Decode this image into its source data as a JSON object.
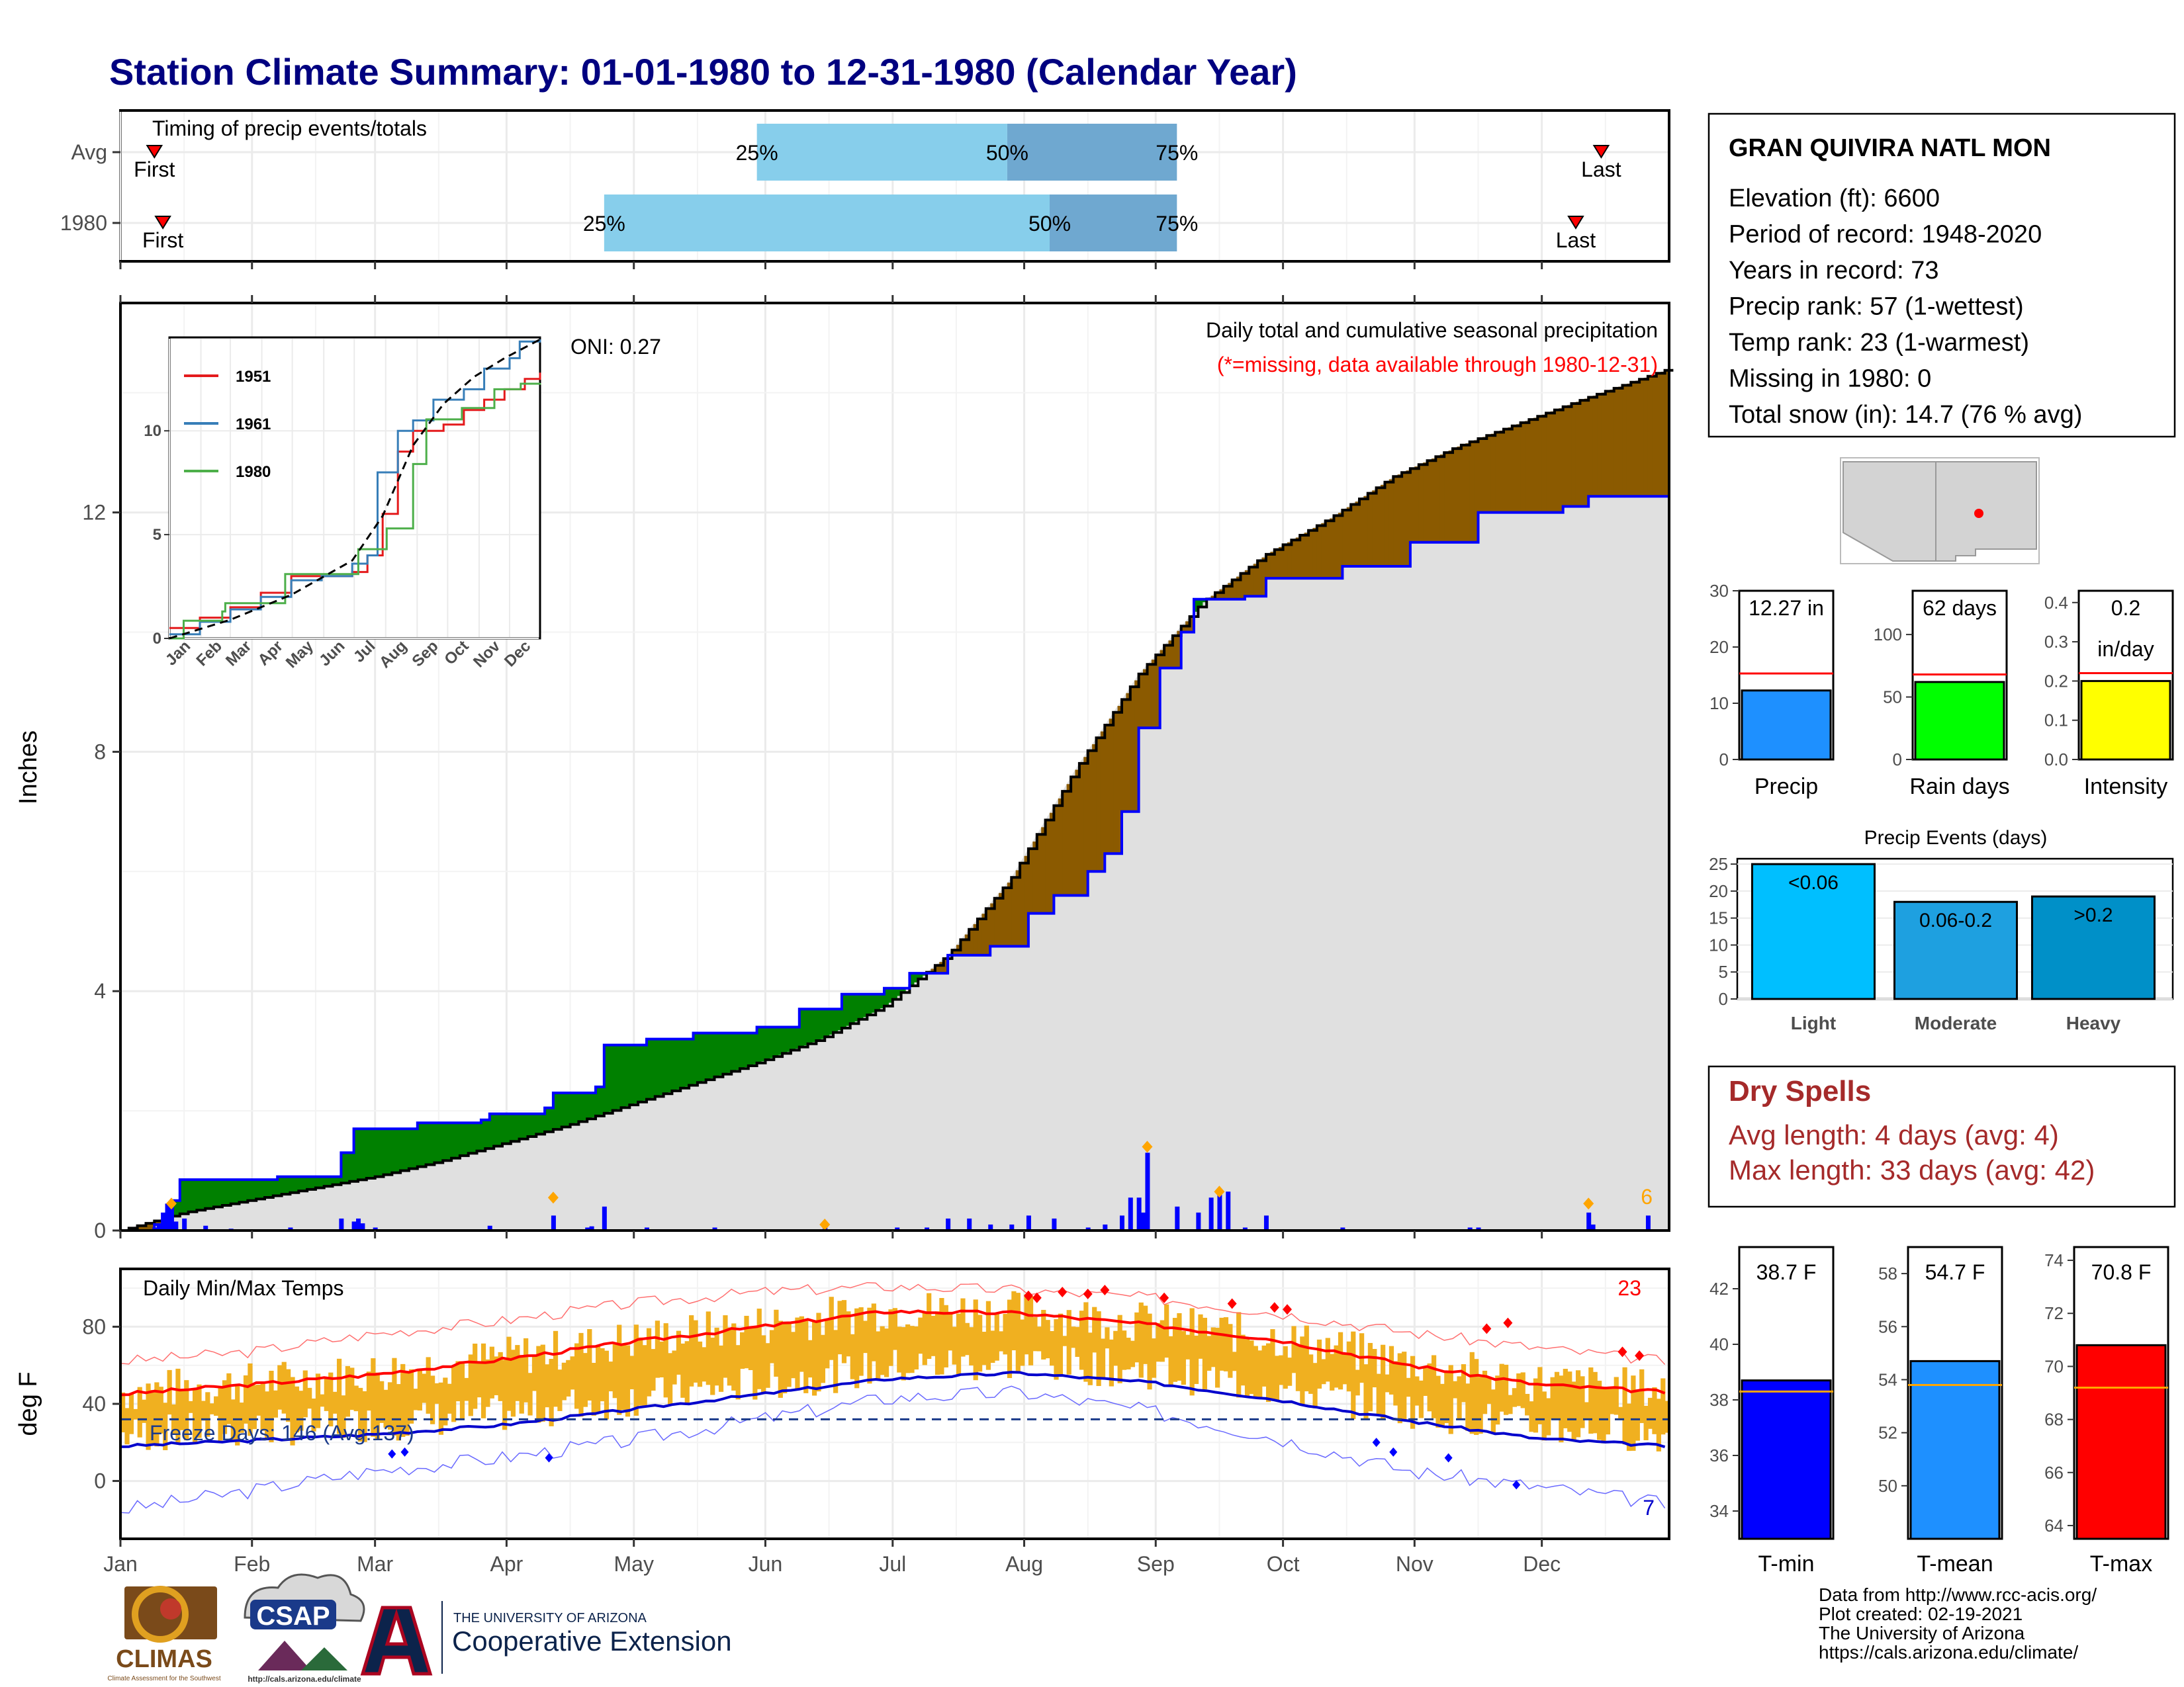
{
  "page": {
    "title": "Station Climate Summary: 01-01-1980 to 12-31-1980 (Calendar Year)"
  },
  "colors": {
    "title": "#000080",
    "precip_bar": "#0000ff",
    "above_avg_fill": "#008000",
    "below_avg_fill": "#8b5a00",
    "avg_area": "#e0e0e0",
    "tmax_line": "#ff0000",
    "tmin_line": "#0000cc",
    "temp_band": "#f0b020",
    "timing_light": "#87ceeb",
    "timing_dark": "#6fa8d0",
    "marker": "#ff0000",
    "orange": "#ffa500",
    "dry_spell_text": "#a52a2a"
  },
  "timing_panel": {
    "label": "Timing of precip events/totals",
    "rows": [
      {
        "name": "Avg",
        "first_label": "First",
        "last_label": "Last",
        "first_day": 8,
        "last_day": 349,
        "p25_day": 150,
        "p50_day": 209,
        "p75_day": 249,
        "p25_label": "25%",
        "p50_label": "50%",
        "p75_label": "75%"
      },
      {
        "name": "1980",
        "first_label": "First",
        "last_label": "Last",
        "first_day": 10,
        "last_day": 343,
        "p25_day": 114,
        "p50_day": 219,
        "p75_day": 249,
        "p25_label": "25%",
        "p50_label": "50%",
        "p75_label": "75%"
      }
    ]
  },
  "precip_panel": {
    "ylabel": "Inches",
    "header": "Daily total and cumulative seasonal precipitation",
    "subheader": "(*=missing, data available through 1980-12-31)",
    "oni": "ONI: 0.27",
    "count_label": "6"
  },
  "inset": {
    "legend": [
      "1951",
      "1961",
      "1980"
    ],
    "legend_colors": [
      "#e41a1c",
      "#377eb8",
      "#4daf4a"
    ],
    "months": [
      "Jan",
      "Feb",
      "Mar",
      "Apr",
      "May",
      "Jun",
      "Jul",
      "Aug",
      "Sep",
      "Oct",
      "Nov",
      "Dec"
    ]
  },
  "temp_panel": {
    "ylabel": "deg F",
    "label": "Daily Min/Max Temps",
    "freeze_label": "Freeze Days: 146 (Avg:137)",
    "hot_count": "23",
    "cold_count": "7"
  },
  "months": [
    "Jan",
    "Feb",
    "Mar",
    "Apr",
    "May",
    "Jun",
    "Jul",
    "Aug",
    "Sep",
    "Oct",
    "Nov",
    "Dec"
  ],
  "station": {
    "name": "GRAN QUIVIRA NATL MON",
    "lines": [
      "Elevation (ft): 6600",
      "Period of record: 1948-2020",
      "Years in record: 73",
      "Precip rank: 57 (1-wettest)",
      "Temp rank: 23 (1-warmest)",
      "Missing in 1980: 0",
      "Total snow (in): 14.7 (76 % avg)"
    ]
  },
  "mini_precip": {
    "bars": [
      {
        "name": "Precip",
        "value_label": "12.27 in",
        "value": 12.27,
        "avg": 15.3,
        "ymax": 30,
        "ticks": [
          0,
          10,
          20,
          30
        ],
        "color": "#1e90ff"
      },
      {
        "name": "Rain days",
        "value_label": "62 days",
        "value": 62,
        "avg": 68,
        "ymax": 135,
        "ticks": [
          0,
          50,
          100
        ],
        "color": "#00ff00"
      },
      {
        "name": "Intensity",
        "value_label": "0.2",
        "value_label2": "in/day",
        "value": 0.2,
        "avg": 0.22,
        "ymax": 0.43,
        "ticks": [
          0.0,
          0.1,
          0.2,
          0.3,
          0.4
        ],
        "color": "#ffff00"
      }
    ]
  },
  "precip_events": {
    "title": "Precip Events (days)",
    "categories": [
      "Light",
      "Moderate",
      "Heavy"
    ],
    "labels": [
      "<0.06",
      "0.06-0.2",
      ">0.2"
    ],
    "values": [
      25,
      18,
      19
    ],
    "colors": [
      "#00bfff",
      "#1ea0e0",
      "#0090c8"
    ],
    "ylim": [
      0,
      26
    ]
  },
  "dry_spells": {
    "title": "Dry Spells",
    "avg_line": "Avg length: 4 days (avg: 4)",
    "max_line": "Max length: 33 days (avg: 42)"
  },
  "mini_temp": {
    "bars": [
      {
        "name": "T-min",
        "value_label": "38.7 F",
        "value": 38.7,
        "avg": 38.3,
        "ylim": [
          33,
          43.5
        ],
        "ticks": [
          34,
          36,
          38,
          40,
          42
        ],
        "color": "#0000ff"
      },
      {
        "name": "T-mean",
        "value_label": "54.7 F",
        "value": 54.7,
        "avg": 53.8,
        "ylim": [
          48,
          59
        ],
        "ticks": [
          50,
          52,
          54,
          56,
          58
        ],
        "color": "#1e90ff"
      },
      {
        "name": "T-max",
        "value_label": "70.8 F",
        "value": 70.8,
        "avg": 69.2,
        "ylim": [
          63.5,
          74.5
        ],
        "ticks": [
          64,
          66,
          68,
          70,
          72,
          74
        ],
        "color": "#ff0000"
      }
    ]
  },
  "footer": {
    "lines": [
      "Data from http://www.rcc-acis.org/",
      "Plot created: 02-19-2021",
      "The University of Arizona",
      "https://cals.arizona.edu/climate/"
    ],
    "climas": "CLIMAS",
    "climas_sub": "Climate Assessment for the Southwest",
    "csap": "CSAP",
    "csap_url": "http://cals.arizona.edu/climate",
    "ua_top": "THE UNIVERSITY OF ARIZONA",
    "ua_bottom": "Cooperative Extension"
  },
  "chart_data": [
    {
      "type": "area",
      "title": "Daily total and cumulative seasonal precipitation",
      "ylabel": "Inches",
      "ylim": [
        0,
        15.5
      ],
      "x_unit": "day of year",
      "avg_cumulative": [
        [
          0,
          0
        ],
        [
          15,
          0.3
        ],
        [
          30,
          0.5
        ],
        [
          45,
          0.7
        ],
        [
          60,
          0.9
        ],
        [
          75,
          1.15
        ],
        [
          90,
          1.45
        ],
        [
          105,
          1.75
        ],
        [
          120,
          2.1
        ],
        [
          135,
          2.45
        ],
        [
          150,
          2.8
        ],
        [
          165,
          3.2
        ],
        [
          180,
          3.75
        ],
        [
          195,
          4.6
        ],
        [
          210,
          5.9
        ],
        [
          225,
          7.7
        ],
        [
          240,
          9.3
        ],
        [
          255,
          10.5
        ],
        [
          270,
          11.3
        ],
        [
          285,
          11.9
        ],
        [
          300,
          12.6
        ],
        [
          315,
          13.1
        ],
        [
          330,
          13.5
        ],
        [
          345,
          13.9
        ],
        [
          365,
          14.4
        ]
      ],
      "year_cumulative": [
        [
          0,
          0
        ],
        [
          8,
          0.1
        ],
        [
          12,
          0.5
        ],
        [
          14,
          0.85
        ],
        [
          35,
          0.85
        ],
        [
          37,
          0.9
        ],
        [
          50,
          0.9
        ],
        [
          52,
          1.3
        ],
        [
          55,
          1.7
        ],
        [
          70,
          1.8
        ],
        [
          85,
          1.85
        ],
        [
          87,
          1.95
        ],
        [
          100,
          2.05
        ],
        [
          102,
          2.3
        ],
        [
          112,
          2.4
        ],
        [
          114,
          3.1
        ],
        [
          124,
          3.2
        ],
        [
          135,
          3.3
        ],
        [
          150,
          3.4
        ],
        [
          160,
          3.7
        ],
        [
          170,
          3.95
        ],
        [
          180,
          4.05
        ],
        [
          186,
          4.3
        ],
        [
          195,
          4.6
        ],
        [
          205,
          4.75
        ],
        [
          214,
          5.3
        ],
        [
          220,
          5.6
        ],
        [
          228,
          6.0
        ],
        [
          232,
          6.3
        ],
        [
          236,
          7.0
        ],
        [
          240,
          8.4
        ],
        [
          245,
          9.4
        ],
        [
          250,
          10.0
        ],
        [
          253,
          10.55
        ],
        [
          265,
          10.6
        ],
        [
          270,
          10.9
        ],
        [
          288,
          11.1
        ],
        [
          304,
          11.5
        ],
        [
          320,
          12.0
        ],
        [
          340,
          12.1
        ],
        [
          346,
          12.27
        ],
        [
          365,
          12.27
        ]
      ],
      "daily_precip": [
        [
          8,
          0.05
        ],
        [
          9,
          0.1
        ],
        [
          10,
          0.3
        ],
        [
          11,
          0.45
        ],
        [
          12,
          0.4
        ],
        [
          13,
          0.15
        ],
        [
          15,
          0.2
        ],
        [
          20,
          0.08
        ],
        [
          26,
          0.03
        ],
        [
          40,
          0.05
        ],
        [
          52,
          0.2
        ],
        [
          55,
          0.15
        ],
        [
          56,
          0.2
        ],
        [
          57,
          0.12
        ],
        [
          60,
          0.05
        ],
        [
          87,
          0.08
        ],
        [
          102,
          0.25
        ],
        [
          110,
          0.05
        ],
        [
          111,
          0.07
        ],
        [
          114,
          0.4
        ],
        [
          124,
          0.05
        ],
        [
          140,
          0.05
        ],
        [
          166,
          0.05
        ],
        [
          183,
          0.05
        ],
        [
          190,
          0.05
        ],
        [
          195,
          0.2
        ],
        [
          200,
          0.2
        ],
        [
          205,
          0.1
        ],
        [
          210,
          0.1
        ],
        [
          214,
          0.25
        ],
        [
          220,
          0.2
        ],
        [
          224,
          0.02
        ],
        [
          228,
          0.05
        ],
        [
          232,
          0.1
        ],
        [
          236,
          0.25
        ],
        [
          238,
          0.55
        ],
        [
          240,
          0.55
        ],
        [
          241,
          0.3
        ],
        [
          242,
          1.3
        ],
        [
          249,
          0.4
        ],
        [
          254,
          0.3
        ],
        [
          257,
          0.55
        ],
        [
          259,
          0.6
        ],
        [
          261,
          0.65
        ],
        [
          265,
          0.05
        ],
        [
          270,
          0.25
        ],
        [
          288,
          0.05
        ],
        [
          318,
          0.05
        ],
        [
          320,
          0.05
        ],
        [
          346,
          0.3
        ],
        [
          347,
          0.1
        ],
        [
          349,
          0.02
        ],
        [
          360,
          0.25
        ]
      ]
    },
    {
      "type": "line",
      "title": "Daily Min/Max Temps",
      "ylabel": "deg F",
      "ylim": [
        -30,
        110
      ],
      "x_unit": "day of year",
      "avg_tmax": [
        [
          0,
          45
        ],
        [
          31,
          50
        ],
        [
          59,
          55
        ],
        [
          90,
          63
        ],
        [
          120,
          72
        ],
        [
          151,
          80
        ],
        [
          181,
          88
        ],
        [
          212,
          87
        ],
        [
          243,
          81
        ],
        [
          273,
          73
        ],
        [
          304,
          60
        ],
        [
          334,
          50
        ],
        [
          365,
          46
        ]
      ],
      "avg_tmin": [
        [
          0,
          18
        ],
        [
          31,
          21
        ],
        [
          59,
          24
        ],
        [
          90,
          29
        ],
        [
          120,
          37
        ],
        [
          151,
          45
        ],
        [
          181,
          53
        ],
        [
          212,
          56
        ],
        [
          243,
          51
        ],
        [
          273,
          42
        ],
        [
          304,
          31
        ],
        [
          334,
          22
        ],
        [
          365,
          18
        ]
      ],
      "record_high": [
        [
          0,
          62
        ],
        [
          31,
          67
        ],
        [
          59,
          76
        ],
        [
          90,
          83
        ],
        [
          120,
          92
        ],
        [
          151,
          98
        ],
        [
          181,
          101
        ],
        [
          212,
          99
        ],
        [
          243,
          95
        ],
        [
          273,
          87
        ],
        [
          304,
          77
        ],
        [
          334,
          69
        ],
        [
          365,
          62
        ]
      ],
      "record_low": [
        [
          0,
          -15
        ],
        [
          31,
          -5
        ],
        [
          59,
          5
        ],
        [
          90,
          12
        ],
        [
          120,
          21
        ],
        [
          151,
          32
        ],
        [
          181,
          43
        ],
        [
          212,
          46
        ],
        [
          243,
          36
        ],
        [
          273,
          22
        ],
        [
          304,
          5
        ],
        [
          334,
          -3
        ],
        [
          365,
          -12
        ]
      ],
      "freeze_threshold": 32
    },
    {
      "type": "line",
      "title": "",
      "x_unit": "month",
      "xlim": [
        0,
        365
      ],
      "ylim": [
        0,
        14.5
      ],
      "series": [
        {
          "name": "1951",
          "values": [
            [
              0,
              0.5
            ],
            [
              30,
              1
            ],
            [
              60,
              1.5
            ],
            [
              90,
              2.2
            ],
            [
              120,
              3
            ],
            [
              150,
              3
            ],
            [
              180,
              3.2
            ],
            [
              195,
              4
            ],
            [
              210,
              6
            ],
            [
              225,
              9
            ],
            [
              240,
              10
            ],
            [
              255,
              10
            ],
            [
              270,
              10.3
            ],
            [
              290,
              11
            ],
            [
              310,
              11.5
            ],
            [
              330,
              12
            ],
            [
              350,
              12.5
            ],
            [
              365,
              12.8
            ]
          ]
        },
        {
          "name": "1961",
          "values": [
            [
              0,
              0.2
            ],
            [
              30,
              0.8
            ],
            [
              60,
              1.4
            ],
            [
              90,
              2
            ],
            [
              120,
              2.8
            ],
            [
              150,
              3
            ],
            [
              180,
              3.6
            ],
            [
              195,
              4
            ],
            [
              205,
              8
            ],
            [
              225,
              10
            ],
            [
              240,
              10.5
            ],
            [
              260,
              11.5
            ],
            [
              290,
              12
            ],
            [
              310,
              13
            ],
            [
              335,
              13.5
            ],
            [
              345,
              14.3
            ],
            [
              365,
              14.4
            ]
          ]
        },
        {
          "name": "1980",
          "values": [
            [
              0,
              0
            ],
            [
              14,
              0.85
            ],
            [
              52,
              1.3
            ],
            [
              55,
              1.7
            ],
            [
              114,
              3.1
            ],
            [
              186,
              4.3
            ],
            [
              214,
              5.3
            ],
            [
              240,
              8.4
            ],
            [
              253,
              10.55
            ],
            [
              288,
              11.1
            ],
            [
              320,
              12
            ],
            [
              346,
              12.27
            ],
            [
              365,
              12.3
            ]
          ]
        },
        {
          "name": "avg",
          "values": [
            [
              0,
              0
            ],
            [
              60,
              0.9
            ],
            [
              120,
              2.1
            ],
            [
              180,
              3.75
            ],
            [
              210,
              5.9
            ],
            [
              240,
              9.3
            ],
            [
              270,
              11.3
            ],
            [
              300,
              12.6
            ],
            [
              330,
              13.5
            ],
            [
              365,
              14.4
            ]
          ]
        }
      ]
    }
  ]
}
